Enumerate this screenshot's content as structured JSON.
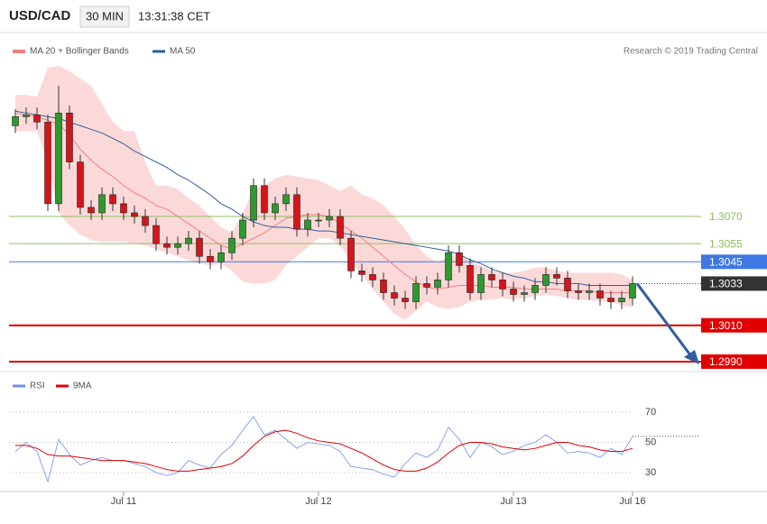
{
  "header": {
    "symbol": "USD/CAD",
    "interval": "30 MIN",
    "time": "13:31:38 CET"
  },
  "chart_data": [
    {
      "type": "candlestick",
      "attribution": "Research © 2019 Trading Central",
      "up_color": "#2e9a2e",
      "down_color": "#d7141b",
      "open": [
        1.312,
        1.3125,
        1.3126,
        1.3122,
        1.3077,
        1.3127,
        1.31,
        1.3075,
        1.3072,
        1.3082,
        1.3077,
        1.3072,
        1.307,
        1.3065,
        1.3055,
        1.3053,
        1.3055,
        1.3058,
        1.3048,
        1.3045,
        1.305,
        1.3058,
        1.3068,
        1.3087,
        1.3072,
        1.3077,
        1.3082,
        1.3063,
        1.3068,
        1.3068,
        1.307,
        1.3058,
        1.304,
        1.3038,
        1.3035,
        1.3028,
        1.3025,
        1.3023,
        1.3033,
        1.3031,
        1.3035,
        1.305,
        1.3043,
        1.3028,
        1.3038,
        1.3035,
        1.303,
        1.3027,
        1.3028,
        1.3032,
        1.3038,
        1.3036,
        1.3029,
        1.3028,
        1.3029,
        1.3025,
        1.3023,
        1.3025
      ],
      "high": [
        1.3129,
        1.313,
        1.313,
        1.3126,
        1.3142,
        1.3131,
        1.3104,
        1.3079,
        1.3086,
        1.3086,
        1.3081,
        1.3076,
        1.3074,
        1.3069,
        1.3059,
        1.3059,
        1.3062,
        1.3062,
        1.3052,
        1.3054,
        1.3062,
        1.3072,
        1.3091,
        1.3091,
        1.3081,
        1.3086,
        1.3086,
        1.3072,
        1.3072,
        1.3074,
        1.3074,
        1.3062,
        1.3044,
        1.3042,
        1.3039,
        1.3032,
        1.3029,
        1.3037,
        1.3037,
        1.3039,
        1.3054,
        1.3054,
        1.3047,
        1.3042,
        1.3042,
        1.3039,
        1.3034,
        1.3032,
        1.3036,
        1.3042,
        1.3042,
        1.304,
        1.3033,
        1.3033,
        1.3033,
        1.3029,
        1.3029,
        1.3037
      ],
      "low": [
        1.3116,
        1.3121,
        1.3118,
        1.3073,
        1.3073,
        1.3096,
        1.3071,
        1.3068,
        1.3068,
        1.3073,
        1.3068,
        1.3066,
        1.3061,
        1.3051,
        1.3049,
        1.3049,
        1.3051,
        1.3044,
        1.3041,
        1.3041,
        1.3046,
        1.3054,
        1.3064,
        1.3068,
        1.3068,
        1.3073,
        1.3059,
        1.3059,
        1.3064,
        1.3064,
        1.3054,
        1.3036,
        1.3034,
        1.3031,
        1.3024,
        1.3021,
        1.3019,
        1.3019,
        1.3027,
        1.3027,
        1.3031,
        1.3039,
        1.3024,
        1.3024,
        1.3031,
        1.3026,
        1.3023,
        1.3023,
        1.3024,
        1.3028,
        1.3032,
        1.3025,
        1.3024,
        1.3024,
        1.3021,
        1.3019,
        1.3019,
        1.3021
      ],
      "close": [
        1.3125,
        1.3126,
        1.3122,
        1.3077,
        1.3127,
        1.31,
        1.3075,
        1.3072,
        1.3082,
        1.3077,
        1.3072,
        1.307,
        1.3065,
        1.3055,
        1.3053,
        1.3055,
        1.3058,
        1.3048,
        1.3045,
        1.305,
        1.3058,
        1.3068,
        1.3087,
        1.3072,
        1.3077,
        1.3082,
        1.3063,
        1.3068,
        1.3068,
        1.307,
        1.3058,
        1.304,
        1.3038,
        1.3035,
        1.3028,
        1.3025,
        1.3023,
        1.3033,
        1.3031,
        1.3035,
        1.305,
        1.3043,
        1.3028,
        1.3038,
        1.3035,
        1.303,
        1.3027,
        1.3028,
        1.3032,
        1.3038,
        1.3036,
        1.3029,
        1.3028,
        1.3029,
        1.3025,
        1.3023,
        1.3025,
        1.3033
      ],
      "series": [
        {
          "name": "MA 20 + Bollinger Bands",
          "color": "#f08080",
          "band_color": "#fcd9d9",
          "values": [
            1.3127,
            1.3126,
            1.3125,
            1.3123,
            1.3121,
            1.3115,
            1.3107,
            1.3101,
            1.3096,
            1.3092,
            1.3087,
            1.3083,
            1.308,
            1.3076,
            1.3074,
            1.307,
            1.3066,
            1.3062,
            1.3058,
            1.3054,
            1.3052,
            1.3055,
            1.3058,
            1.3061,
            1.3065,
            1.3069,
            1.307,
            1.3071,
            1.3071,
            1.307,
            1.3066,
            1.3062,
            1.3058,
            1.3053,
            1.3048,
            1.3043,
            1.3038,
            1.3034,
            1.3031,
            1.303,
            1.3031,
            1.3032,
            1.3032,
            1.3032,
            1.3031,
            1.3031,
            1.3031,
            1.303,
            1.303,
            1.303,
            1.303,
            1.3029,
            1.3029,
            1.3029,
            1.3028,
            1.3028,
            1.3028,
            1.3028
          ],
          "band_upper": [
            1.3137,
            1.3137,
            1.3136,
            1.3152,
            1.3153,
            1.315,
            1.3146,
            1.3142,
            1.3132,
            1.3122,
            1.3117,
            1.3117,
            1.31,
            1.3087,
            1.3087,
            1.3085,
            1.308,
            1.3076,
            1.307,
            1.3064,
            1.3061,
            1.3072,
            1.3085,
            1.3087,
            1.3091,
            1.3093,
            1.3092,
            1.3091,
            1.309,
            1.3087,
            1.3084,
            1.3087,
            1.3082,
            1.308,
            1.3076,
            1.307,
            1.3063,
            1.3054,
            1.3048,
            1.3045,
            1.3048,
            1.3049,
            1.3045,
            1.3043,
            1.304,
            1.3039,
            1.3039,
            1.304,
            1.3042,
            1.3042,
            1.304,
            1.3039,
            1.3039,
            1.3039,
            1.3039,
            1.3039,
            1.3038,
            1.3035
          ],
          "band_lower": [
            1.3117,
            1.3117,
            1.3117,
            1.31,
            1.3072,
            1.3065,
            1.306,
            1.3057,
            1.3056,
            1.3056,
            1.3056,
            1.3055,
            1.3054,
            1.3052,
            1.305,
            1.3048,
            1.3046,
            1.3044,
            1.3043,
            1.3044,
            1.304,
            1.3034,
            1.3033,
            1.3033,
            1.3035,
            1.3043,
            1.3048,
            1.3053,
            1.3058,
            1.3058,
            1.3054,
            1.3045,
            1.3038,
            1.303,
            1.3023,
            1.3016,
            1.3013,
            1.3018,
            1.3023,
            1.302,
            1.3019,
            1.302,
            1.3023,
            1.3024,
            1.3024,
            1.3025,
            1.3024,
            1.3025,
            1.3026,
            1.3027,
            1.3026,
            1.3025,
            1.3024,
            1.3024,
            1.3023,
            1.3023,
            1.3021,
            1.302
          ]
        },
        {
          "name": "MA 50",
          "color": "#2f5f9f",
          "values": [
            1.3128,
            1.3127,
            1.3126,
            1.3125,
            1.3124,
            1.3122,
            1.312,
            1.3118,
            1.3116,
            1.3113,
            1.311,
            1.3106,
            1.3103,
            1.31,
            1.3097,
            1.3093,
            1.309,
            1.3086,
            1.3082,
            1.3077,
            1.3074,
            1.307,
            1.3067,
            1.3065,
            1.3064,
            1.3064,
            1.3063,
            1.3063,
            1.3062,
            1.3062,
            1.3061,
            1.306,
            1.3059,
            1.3058,
            1.3057,
            1.3056,
            1.3055,
            1.3054,
            1.3053,
            1.3052,
            1.3051,
            1.3049,
            1.3046,
            1.3044,
            1.3041,
            1.3039,
            1.3037,
            1.3036,
            1.3034,
            1.3034,
            1.3033,
            1.3033,
            1.3033,
            1.3032,
            1.3032,
            1.3032,
            1.3032,
            1.3032
          ]
        }
      ],
      "levels": [
        {
          "value": 1.307,
          "label": "1.3070",
          "color": "#8cc05a",
          "boxed": false,
          "width": 1
        },
        {
          "value": 1.3055,
          "label": "1.3055",
          "color": "#8cc05a",
          "boxed": false,
          "width": 1
        },
        {
          "value": 1.3045,
          "label": "1.3045",
          "color": "#3d78e3",
          "boxed": true,
          "width": 1
        },
        {
          "value": 1.3033,
          "label": "1.3033",
          "color": "#333333",
          "boxed": true,
          "width": 0
        },
        {
          "value": 1.301,
          "label": "1.3010",
          "color": "#e10000",
          "boxed": true,
          "width": 2
        },
        {
          "value": 1.299,
          "label": "1.2990",
          "color": "#e10000",
          "boxed": true,
          "width": 2
        }
      ],
      "ylim": [
        1.29855,
        1.31694
      ]
    },
    {
      "type": "line",
      "categories": [
        null,
        null,
        null,
        null,
        null,
        null,
        null,
        null,
        null,
        null,
        "Jul 11",
        null,
        null,
        null,
        null,
        null,
        null,
        null,
        null,
        null,
        null,
        null,
        null,
        null,
        null,
        null,
        null,
        null,
        "Jul 12",
        null,
        null,
        null,
        null,
        null,
        null,
        null,
        null,
        null,
        null,
        null,
        null,
        null,
        null,
        null,
        null,
        null,
        "Jul 13",
        null,
        null,
        null,
        null,
        null,
        null,
        null,
        null,
        null,
        null,
        "Jul 16"
      ],
      "series": [
        {
          "name": "RSI",
          "color": "#6d8fe6",
          "values": [
            44,
            50,
            44,
            24,
            52,
            42,
            35,
            38,
            40,
            38,
            38,
            36,
            34,
            30,
            28,
            30,
            38,
            35,
            33,
            42,
            48,
            58,
            67,
            55,
            58,
            52,
            46,
            50,
            49,
            48,
            44,
            34,
            33,
            32,
            29,
            27,
            36,
            43,
            40,
            45,
            60,
            52,
            40,
            50,
            47,
            42,
            44,
            48,
            50,
            55,
            50,
            43,
            44,
            43,
            40,
            46,
            42,
            54
          ]
        },
        {
          "name": "9MA",
          "color": "#e00000",
          "values": [
            48,
            48,
            46,
            42,
            41,
            41,
            40,
            39,
            38,
            38,
            38,
            37,
            36,
            34,
            32,
            31,
            31,
            32,
            33,
            34,
            36,
            41,
            48,
            54,
            57,
            58,
            56,
            53,
            51,
            50,
            49,
            46,
            43,
            39,
            35,
            32,
            31,
            31,
            33,
            37,
            43,
            48,
            50,
            50,
            49,
            47,
            46,
            45,
            46,
            48,
            50,
            50,
            48,
            47,
            45,
            44,
            44,
            46
          ]
        }
      ],
      "ylim": [
        17.5,
        80.1
      ],
      "yticks": [
        30,
        50,
        70
      ],
      "grid": true
    }
  ]
}
